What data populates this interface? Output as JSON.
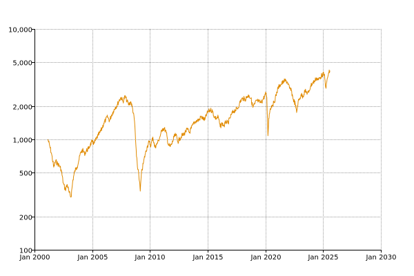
{
  "chart_data": {
    "type": "line",
    "title": "",
    "xlabel": "",
    "ylabel": "",
    "y_scale": "log",
    "xlim": [
      "2000-01-01",
      "2030-01-01"
    ],
    "ylim": [
      100,
      10000
    ],
    "grid": true,
    "legend": "none",
    "x_ticks": [
      {
        "value": "2000-01-01",
        "label": "Jan 2000"
      },
      {
        "value": "2005-01-01",
        "label": "Jan 2005"
      },
      {
        "value": "2010-01-01",
        "label": "Jan 2010"
      },
      {
        "value": "2015-01-01",
        "label": "Jan 2015"
      },
      {
        "value": "2020-01-01",
        "label": "Jan 2020"
      },
      {
        "value": "2025-01-01",
        "label": "Jan 2025"
      },
      {
        "value": "2030-01-01",
        "label": "Jan 2030"
      }
    ],
    "y_ticks": [
      {
        "value": 100,
        "label": "100"
      },
      {
        "value": 200,
        "label": "200"
      },
      {
        "value": 500,
        "label": "500"
      },
      {
        "value": 1000,
        "label": "1,000"
      },
      {
        "value": 2000,
        "label": "2,000"
      },
      {
        "value": 5000,
        "label": "5,000"
      },
      {
        "value": 10000,
        "label": "10,000"
      }
    ],
    "series": [
      {
        "color": "#e08a00",
        "points": [
          [
            "2001-03-01",
            1000
          ],
          [
            "2001-05-01",
            860
          ],
          [
            "2001-07-01",
            720
          ],
          [
            "2001-09-01",
            560
          ],
          [
            "2001-11-01",
            640
          ],
          [
            "2002-01-01",
            600
          ],
          [
            "2002-03-01",
            580
          ],
          [
            "2002-05-01",
            520
          ],
          [
            "2002-07-01",
            400
          ],
          [
            "2002-09-01",
            350
          ],
          [
            "2002-11-01",
            390
          ],
          [
            "2003-01-01",
            330
          ],
          [
            "2003-03-01",
            300
          ],
          [
            "2003-05-01",
            430
          ],
          [
            "2003-07-01",
            520
          ],
          [
            "2003-09-01",
            560
          ],
          [
            "2003-11-01",
            640
          ],
          [
            "2004-01-01",
            760
          ],
          [
            "2004-03-01",
            800
          ],
          [
            "2004-05-01",
            740
          ],
          [
            "2004-07-01",
            790
          ],
          [
            "2004-09-01",
            820
          ],
          [
            "2004-11-01",
            900
          ],
          [
            "2005-01-01",
            950
          ],
          [
            "2005-03-01",
            920
          ],
          [
            "2005-05-01",
            1000
          ],
          [
            "2005-07-01",
            1080
          ],
          [
            "2005-09-01",
            1150
          ],
          [
            "2005-11-01",
            1250
          ],
          [
            "2006-01-01",
            1400
          ],
          [
            "2006-03-01",
            1500
          ],
          [
            "2006-05-01",
            1600
          ],
          [
            "2006-07-01",
            1480
          ],
          [
            "2006-09-01",
            1650
          ],
          [
            "2006-11-01",
            1800
          ],
          [
            "2007-01-01",
            1950
          ],
          [
            "2007-03-01",
            2050
          ],
          [
            "2007-05-01",
            2250
          ],
          [
            "2007-07-01",
            2400
          ],
          [
            "2007-09-01",
            2200
          ],
          [
            "2007-11-01",
            2450
          ],
          [
            "2008-01-01",
            2250
          ],
          [
            "2008-03-01",
            2050
          ],
          [
            "2008-05-01",
            2200
          ],
          [
            "2008-07-01",
            1900
          ],
          [
            "2008-09-01",
            1450
          ],
          [
            "2008-10-01",
            1000
          ],
          [
            "2008-11-01",
            700
          ],
          [
            "2008-12-01",
            560
          ],
          [
            "2009-01-01",
            520
          ],
          [
            "2009-02-01",
            420
          ],
          [
            "2009-03-01",
            340
          ],
          [
            "2009-04-01",
            480
          ],
          [
            "2009-06-01",
            600
          ],
          [
            "2009-08-01",
            730
          ],
          [
            "2009-10-01",
            850
          ],
          [
            "2009-12-01",
            950
          ],
          [
            "2010-02-01",
            880
          ],
          [
            "2010-04-01",
            1050
          ],
          [
            "2010-06-01",
            850
          ],
          [
            "2010-08-01",
            900
          ],
          [
            "2010-10-01",
            980
          ],
          [
            "2010-12-01",
            1100
          ],
          [
            "2011-02-01",
            1250
          ],
          [
            "2011-04-01",
            1250
          ],
          [
            "2011-06-01",
            1150
          ],
          [
            "2011-08-01",
            900
          ],
          [
            "2011-10-01",
            860
          ],
          [
            "2011-12-01",
            920
          ],
          [
            "2012-02-01",
            1050
          ],
          [
            "2012-04-01",
            1100
          ],
          [
            "2012-06-01",
            950
          ],
          [
            "2012-08-01",
            1020
          ],
          [
            "2012-10-01",
            1080
          ],
          [
            "2012-12-01",
            1100
          ],
          [
            "2013-02-01",
            1180
          ],
          [
            "2013-04-01",
            1230
          ],
          [
            "2013-06-01",
            1150
          ],
          [
            "2013-08-01",
            1260
          ],
          [
            "2013-10-01",
            1370
          ],
          [
            "2013-12-01",
            1450
          ],
          [
            "2014-02-01",
            1480
          ],
          [
            "2014-04-01",
            1500
          ],
          [
            "2014-06-01",
            1600
          ],
          [
            "2014-08-01",
            1550
          ],
          [
            "2014-10-01",
            1500
          ],
          [
            "2014-12-01",
            1700
          ],
          [
            "2015-02-01",
            1800
          ],
          [
            "2015-04-01",
            1850
          ],
          [
            "2015-06-01",
            1800
          ],
          [
            "2015-08-01",
            1600
          ],
          [
            "2015-10-01",
            1550
          ],
          [
            "2015-12-01",
            1600
          ],
          [
            "2016-02-01",
            1300
          ],
          [
            "2016-04-01",
            1400
          ],
          [
            "2016-06-01",
            1320
          ],
          [
            "2016-08-01",
            1450
          ],
          [
            "2016-10-01",
            1400
          ],
          [
            "2016-12-01",
            1550
          ],
          [
            "2017-02-01",
            1700
          ],
          [
            "2017-04-01",
            1800
          ],
          [
            "2017-06-01",
            1850
          ],
          [
            "2017-08-01",
            1900
          ],
          [
            "2017-10-01",
            2100
          ],
          [
            "2017-12-01",
            2300
          ],
          [
            "2018-02-01",
            2350
          ],
          [
            "2018-04-01",
            2300
          ],
          [
            "2018-06-01",
            2450
          ],
          [
            "2018-08-01",
            2500
          ],
          [
            "2018-10-01",
            2350
          ],
          [
            "2018-12-01",
            1950
          ],
          [
            "2019-02-01",
            2100
          ],
          [
            "2019-04-01",
            2250
          ],
          [
            "2019-06-01",
            2200
          ],
          [
            "2019-08-01",
            2150
          ],
          [
            "2019-10-01",
            2250
          ],
          [
            "2019-12-01",
            2450
          ],
          [
            "2020-01-15",
            2600
          ],
          [
            "2020-02-15",
            2400
          ],
          [
            "2020-03-20",
            1080
          ],
          [
            "2020-04-15",
            1550
          ],
          [
            "2020-06-01",
            1900
          ],
          [
            "2020-08-01",
            2050
          ],
          [
            "2020-10-01",
            2150
          ],
          [
            "2020-12-01",
            2500
          ],
          [
            "2021-02-01",
            2900
          ],
          [
            "2021-04-01",
            3100
          ],
          [
            "2021-06-01",
            3200
          ],
          [
            "2021-08-01",
            3350
          ],
          [
            "2021-10-01",
            3400
          ],
          [
            "2021-12-01",
            3300
          ],
          [
            "2022-02-01",
            2900
          ],
          [
            "2022-04-01",
            2750
          ],
          [
            "2022-06-01",
            2300
          ],
          [
            "2022-08-01",
            2100
          ],
          [
            "2022-09-15",
            1750
          ],
          [
            "2022-11-01",
            2200
          ],
          [
            "2022-12-15",
            2300
          ],
          [
            "2023-02-01",
            2550
          ],
          [
            "2023-04-01",
            2450
          ],
          [
            "2023-06-01",
            2750
          ],
          [
            "2023-08-01",
            2650
          ],
          [
            "2023-10-01",
            2650
          ],
          [
            "2023-12-01",
            3050
          ],
          [
            "2024-02-01",
            3250
          ],
          [
            "2024-04-01",
            3350
          ],
          [
            "2024-06-01",
            3600
          ],
          [
            "2024-08-01",
            3450
          ],
          [
            "2024-10-01",
            3650
          ],
          [
            "2024-12-01",
            3850
          ],
          [
            "2025-02-01",
            3900
          ],
          [
            "2025-04-01",
            2900
          ],
          [
            "2025-05-15",
            3600
          ],
          [
            "2025-07-01",
            4000
          ],
          [
            "2025-08-01",
            4200
          ]
        ]
      }
    ]
  }
}
